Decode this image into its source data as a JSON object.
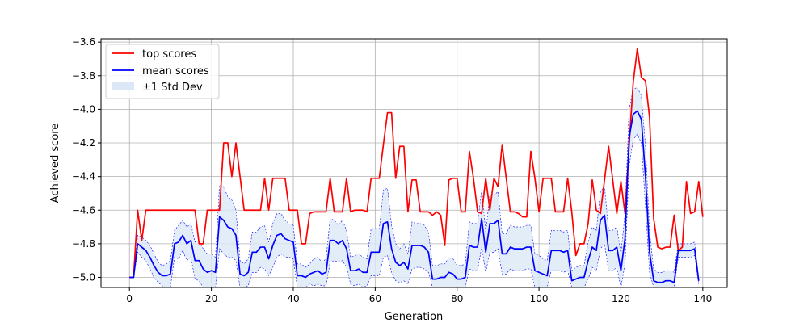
{
  "chart_data": {
    "type": "line",
    "title": "",
    "xlabel": "Generation",
    "ylabel": "Achieved score",
    "xlim": [
      -6.95,
      145.95
    ],
    "ylim": [
      -5.06,
      -3.58
    ],
    "xticks": [
      0,
      20,
      40,
      60,
      80,
      100,
      120,
      140
    ],
    "yticks": [
      -5.0,
      -4.8,
      -4.6,
      -4.4,
      -4.2,
      -4.0,
      -3.8,
      -3.6
    ],
    "xtick_labels": [
      "0",
      "20",
      "40",
      "60",
      "80",
      "100",
      "120",
      "140"
    ],
    "ytick_labels": [
      "−5.0",
      "−4.8",
      "−4.6",
      "−4.4",
      "−4.2",
      "−4.0",
      "−3.8",
      "−3.6"
    ],
    "grid": true,
    "legend_position": "top-left",
    "legend": [
      "top scores",
      "mean scores",
      "±1 Std Dev"
    ],
    "colors": {
      "top": "#ff0000",
      "mean": "#0000ff",
      "band_fill": "#dce8f6",
      "band_edge": "#0000ff"
    },
    "x_start": 0,
    "top_scores": [
      -5.0,
      -5.0,
      -4.6,
      -4.78,
      -4.6,
      -4.6,
      -4.6,
      -4.6,
      -4.6,
      -4.6,
      -4.6,
      -4.6,
      -4.6,
      -4.6,
      -4.6,
      -4.6,
      -4.6,
      -4.8,
      -4.8,
      -4.6,
      -4.6,
      -4.6,
      -4.6,
      -4.2,
      -4.2,
      -4.4,
      -4.2,
      -4.4,
      -4.6,
      -4.6,
      -4.6,
      -4.6,
      -4.6,
      -4.41,
      -4.6,
      -4.41,
      -4.41,
      -4.41,
      -4.41,
      -4.6,
      -4.6,
      -4.6,
      -4.8,
      -4.8,
      -4.62,
      -4.61,
      -4.61,
      -4.61,
      -4.61,
      -4.41,
      -4.61,
      -4.61,
      -4.61,
      -4.41,
      -4.61,
      -4.6,
      -4.6,
      -4.6,
      -4.61,
      -4.41,
      -4.41,
      -4.41,
      -4.21,
      -4.02,
      -4.02,
      -4.41,
      -4.22,
      -4.22,
      -4.61,
      -4.42,
      -4.42,
      -4.61,
      -4.61,
      -4.61,
      -4.63,
      -4.61,
      -4.63,
      -4.81,
      -4.42,
      -4.41,
      -4.41,
      -4.61,
      -4.61,
      -4.25,
      -4.41,
      -4.61,
      -4.62,
      -4.41,
      -4.6,
      -4.41,
      -4.46,
      -4.21,
      -4.41,
      -4.61,
      -4.61,
      -4.62,
      -4.64,
      -4.64,
      -4.25,
      -4.41,
      -4.61,
      -4.41,
      -4.41,
      -4.41,
      -4.61,
      -4.61,
      -4.61,
      -4.41,
      -4.61,
      -4.87,
      -4.8,
      -4.8,
      -4.68,
      -4.42,
      -4.6,
      -4.62,
      -4.42,
      -4.22,
      -4.42,
      -4.62,
      -4.43,
      -4.62,
      -4.22,
      -3.84,
      -3.64,
      -3.81,
      -3.83,
      -4.05,
      -4.65,
      -4.82,
      -4.83,
      -4.82,
      -4.82,
      -4.63,
      -4.84,
      -4.82,
      -4.43,
      -4.62,
      -4.61,
      -4.43,
      -4.64
    ],
    "mean_scores": [
      -5.0,
      -5.0,
      -4.8,
      -4.82,
      -4.84,
      -4.88,
      -4.93,
      -4.97,
      -4.99,
      -4.99,
      -4.98,
      -4.8,
      -4.79,
      -4.75,
      -4.8,
      -4.78,
      -4.9,
      -4.9,
      -4.95,
      -4.97,
      -4.96,
      -4.97,
      -4.64,
      -4.66,
      -4.7,
      -4.71,
      -4.75,
      -4.98,
      -4.99,
      -4.97,
      -4.85,
      -4.85,
      -4.82,
      -4.82,
      -4.89,
      -4.81,
      -4.75,
      -4.74,
      -4.77,
      -4.78,
      -4.79,
      -4.99,
      -4.99,
      -5.0,
      -4.98,
      -4.97,
      -4.96,
      -4.98,
      -4.97,
      -4.78,
      -4.78,
      -4.8,
      -4.78,
      -4.83,
      -4.96,
      -4.96,
      -4.95,
      -4.97,
      -4.97,
      -4.85,
      -4.85,
      -4.85,
      -4.68,
      -4.67,
      -4.83,
      -4.91,
      -4.93,
      -4.91,
      -4.95,
      -4.81,
      -4.81,
      -4.81,
      -4.82,
      -4.85,
      -5.01,
      -5.01,
      -5.0,
      -5.0,
      -4.97,
      -4.98,
      -5.01,
      -5.01,
      -5.0,
      -4.81,
      -4.82,
      -4.82,
      -4.65,
      -4.85,
      -4.68,
      -4.68,
      -4.66,
      -4.86,
      -4.86,
      -4.82,
      -4.83,
      -4.83,
      -4.83,
      -4.82,
      -4.82,
      -4.96,
      -4.97,
      -4.98,
      -4.99,
      -4.84,
      -4.84,
      -4.84,
      -4.85,
      -4.84,
      -5.02,
      -5.01,
      -5.0,
      -5.0,
      -4.9,
      -4.82,
      -4.84,
      -4.66,
      -4.63,
      -4.84,
      -4.84,
      -4.82,
      -4.96,
      -4.77,
      -4.17,
      -4.03,
      -4.01,
      -4.06,
      -4.4,
      -4.85,
      -5.02,
      -5.03,
      -5.03,
      -5.02,
      -5.02,
      -5.03,
      -4.84,
      -4.84,
      -4.84,
      -4.84,
      -4.83,
      -5.02
    ],
    "std_dev": [
      0,
      0,
      0.05,
      0.06,
      0.06,
      0.07,
      0.07,
      0.06,
      0.06,
      0.07,
      0.08,
      0.08,
      0.1,
      0.09,
      0.1,
      0.1,
      0.11,
      0.12,
      0.12,
      0.11,
      0.1,
      0.09,
      0.19,
      0.2,
      0.18,
      0.17,
      0.15,
      0.08,
      0.07,
      0.08,
      0.12,
      0.12,
      0.12,
      0.13,
      0.1,
      0.13,
      0.13,
      0.12,
      0.11,
      0.1,
      0.1,
      0.07,
      0.07,
      0.06,
      0.06,
      0.08,
      0.08,
      0.07,
      0.08,
      0.13,
      0.12,
      0.11,
      0.12,
      0.11,
      0.08,
      0.09,
      0.09,
      0.09,
      0.08,
      0.14,
      0.14,
      0.14,
      0.2,
      0.2,
      0.14,
      0.11,
      0.1,
      0.11,
      0.09,
      0.14,
      0.13,
      0.13,
      0.13,
      0.12,
      0.08,
      0.08,
      0.08,
      0.08,
      0.09,
      0.09,
      0.08,
      0.08,
      0.08,
      0.14,
      0.14,
      0.14,
      0.17,
      0.12,
      0.17,
      0.17,
      0.17,
      0.12,
      0.12,
      0.13,
      0.13,
      0.13,
      0.13,
      0.13,
      0.13,
      0.1,
      0.1,
      0.09,
      0.09,
      0.12,
      0.12,
      0.12,
      0.12,
      0.12,
      0.06,
      0.07,
      0.07,
      0.07,
      0.11,
      0.12,
      0.12,
      0.17,
      0.17,
      0.12,
      0.12,
      0.12,
      0.1,
      0.15,
      0.17,
      0.15,
      0.14,
      0.14,
      0.18,
      0.12,
      0.07,
      0.06,
      0.06,
      0.06,
      0.06,
      0.06,
      0.04,
      0.04,
      0.04,
      0.04,
      0.04,
      0.02
    ]
  }
}
